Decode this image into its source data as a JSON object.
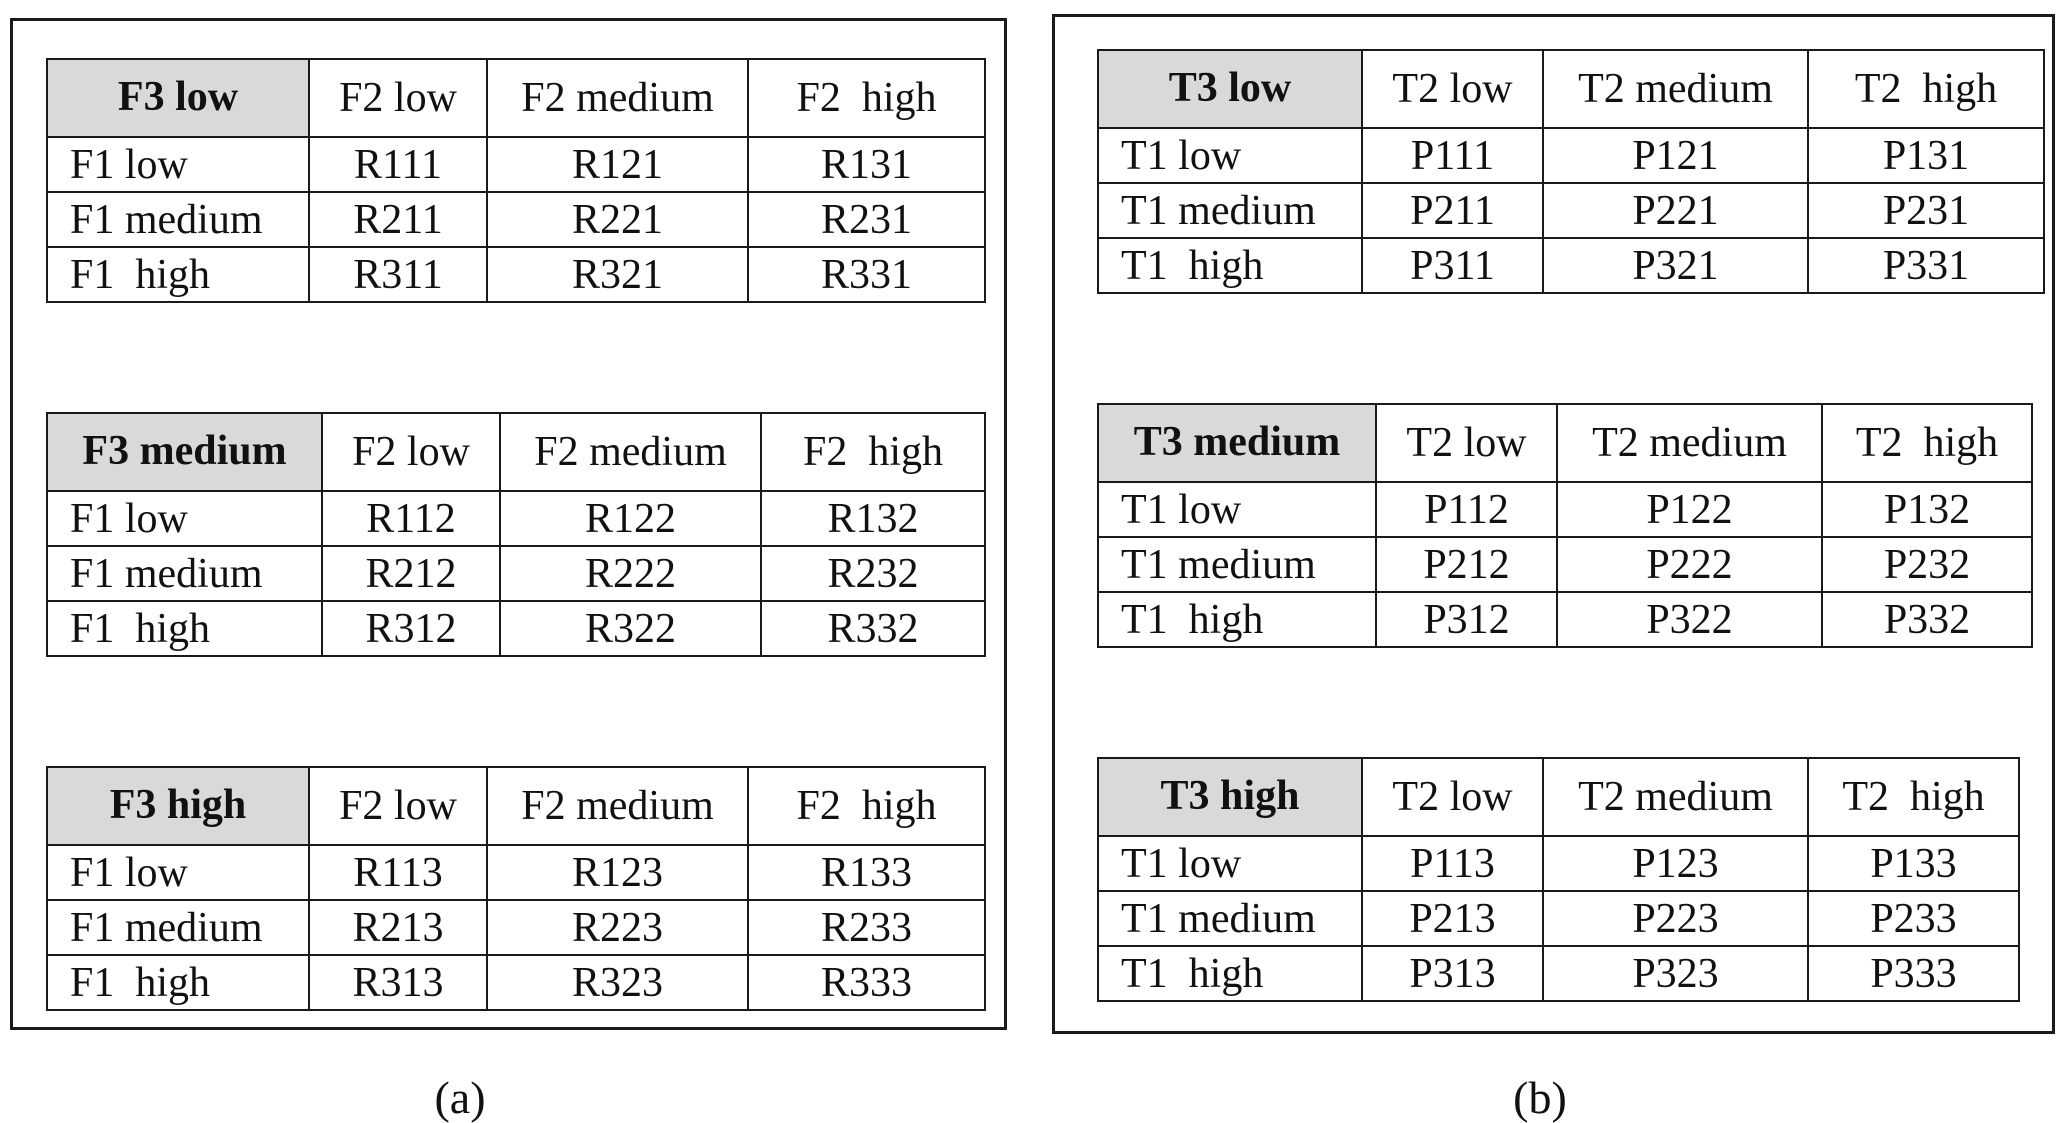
{
  "panel_a": {
    "caption": "(a)",
    "tables": [
      {
        "corner": "F3 low",
        "columns": [
          "F2 low",
          "F2 medium",
          "F2  high"
        ],
        "rows": [
          {
            "label": "F1 low",
            "cells": [
              "R111",
              "R121",
              "R131"
            ]
          },
          {
            "label": "F1 medium",
            "cells": [
              "R211",
              "R221",
              "R231"
            ]
          },
          {
            "label": "F1  high",
            "cells": [
              "R311",
              "R321",
              "R331"
            ]
          }
        ]
      },
      {
        "corner": "F3 medium",
        "columns": [
          "F2 low",
          "F2 medium",
          "F2  high"
        ],
        "rows": [
          {
            "label": "F1 low",
            "cells": [
              "R112",
              "R122",
              "R132"
            ]
          },
          {
            "label": "F1 medium",
            "cells": [
              "R212",
              "R222",
              "R232"
            ]
          },
          {
            "label": "F1  high",
            "cells": [
              "R312",
              "R322",
              "R332"
            ]
          }
        ]
      },
      {
        "corner": "F3 high",
        "columns": [
          "F2 low",
          "F2 medium",
          "F2  high"
        ],
        "rows": [
          {
            "label": "F1 low",
            "cells": [
              "R113",
              "R123",
              "R133"
            ]
          },
          {
            "label": "F1 medium",
            "cells": [
              "R213",
              "R223",
              "R233"
            ]
          },
          {
            "label": "F1  high",
            "cells": [
              "R313",
              "R323",
              "R333"
            ]
          }
        ]
      }
    ]
  },
  "panel_b": {
    "caption": "(b)",
    "tables": [
      {
        "corner": "T3 low",
        "columns": [
          "T2 low",
          "T2 medium",
          "T2  high"
        ],
        "rows": [
          {
            "label": "T1 low",
            "cells": [
              "P111",
              "P121",
              "P131"
            ]
          },
          {
            "label": "T1 medium",
            "cells": [
              "P211",
              "P221",
              "P231"
            ]
          },
          {
            "label": "T1  high",
            "cells": [
              "P311",
              "P321",
              "P331"
            ]
          }
        ]
      },
      {
        "corner": "T3 medium",
        "columns": [
          "T2 low",
          "T2 medium",
          "T2  high"
        ],
        "rows": [
          {
            "label": "T1 low",
            "cells": [
              "P112",
              "P122",
              "P132"
            ]
          },
          {
            "label": "T1 medium",
            "cells": [
              "P212",
              "P222",
              "P232"
            ]
          },
          {
            "label": "T1  high",
            "cells": [
              "P312",
              "P322",
              "P332"
            ]
          }
        ]
      },
      {
        "corner": "T3 high",
        "columns": [
          "T2 low",
          "T2 medium",
          "T2  high"
        ],
        "rows": [
          {
            "label": "T1 low",
            "cells": [
              "P113",
              "P123",
              "P133"
            ]
          },
          {
            "label": "T1 medium",
            "cells": [
              "P213",
              "P223",
              "P233"
            ]
          },
          {
            "label": "T1  high",
            "cells": [
              "P313",
              "P323",
              "P333"
            ]
          }
        ]
      }
    ]
  }
}
